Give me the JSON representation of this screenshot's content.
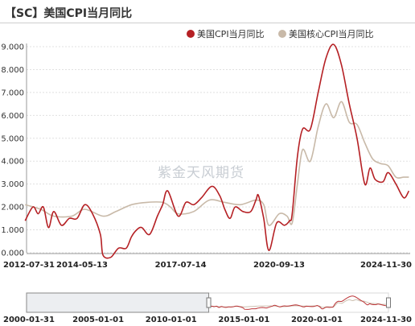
{
  "title": "【SC】美国CPI当月同比",
  "watermark": "紫金天风期货",
  "colors": {
    "cpi": "#b52024",
    "core": "#c8b9a8",
    "grid": "#e0e0e0",
    "axis": "#9a9a9a"
  },
  "legend": [
    {
      "name": "美国CPI当月同比",
      "color": "#b52024",
      "icon": "filled-circle-icon"
    },
    {
      "name": "美国核心CPI当月同比",
      "color": "#c8b9a8",
      "icon": "filled-circle-icon"
    }
  ],
  "chart_data": {
    "type": "line",
    "title": "【SC】美国CPI当月同比",
    "xlabel": "",
    "ylabel": "",
    "x_range": [
      "2012-07-31",
      "2024-11-30"
    ],
    "ylim": [
      0,
      9
    ],
    "y_ticks": [
      "0.000",
      "1.000",
      "2.000",
      "3.000",
      "4.000",
      "5.000",
      "6.000",
      "7.000",
      "8.000",
      "9.000"
    ],
    "x_ticks": [
      "2012-07-31",
      "2014-05-13",
      "2017-07-14",
      "2020-09-13",
      "2024-11-30"
    ],
    "grid": true,
    "legend_position": "top-right",
    "series": [
      {
        "name": "美国CPI当月同比",
        "color": "#b52024",
        "points": [
          [
            "2012-07",
            1.4
          ],
          [
            "2012-10",
            2.0
          ],
          [
            "2012-12",
            1.7
          ],
          [
            "2013-02",
            2.0
          ],
          [
            "2013-04",
            1.1
          ],
          [
            "2013-06",
            1.8
          ],
          [
            "2013-09",
            1.2
          ],
          [
            "2013-12",
            1.5
          ],
          [
            "2014-03",
            1.5
          ],
          [
            "2014-06",
            2.1
          ],
          [
            "2014-09",
            1.7
          ],
          [
            "2014-12",
            0.8
          ],
          [
            "2015-01",
            -0.1
          ],
          [
            "2015-04",
            -0.2
          ],
          [
            "2015-07",
            0.2
          ],
          [
            "2015-10",
            0.2
          ],
          [
            "2015-12",
            0.7
          ],
          [
            "2016-02",
            1.0
          ],
          [
            "2016-04",
            1.1
          ],
          [
            "2016-07",
            0.8
          ],
          [
            "2016-10",
            1.6
          ],
          [
            "2016-12",
            2.1
          ],
          [
            "2017-02",
            2.7
          ],
          [
            "2017-06",
            1.6
          ],
          [
            "2017-09",
            2.2
          ],
          [
            "2017-12",
            2.1
          ],
          [
            "2018-03",
            2.4
          ],
          [
            "2018-07",
            2.9
          ],
          [
            "2018-10",
            2.5
          ],
          [
            "2018-12",
            1.9
          ],
          [
            "2019-02",
            1.5
          ],
          [
            "2019-04",
            2.0
          ],
          [
            "2019-07",
            1.8
          ],
          [
            "2019-10",
            1.8
          ],
          [
            "2019-12",
            2.3
          ],
          [
            "2020-01",
            2.5
          ],
          [
            "2020-03",
            1.5
          ],
          [
            "2020-05",
            0.1
          ],
          [
            "2020-08",
            1.3
          ],
          [
            "2020-11",
            1.2
          ],
          [
            "2021-01",
            1.4
          ],
          [
            "2021-02",
            1.7
          ],
          [
            "2021-04",
            4.2
          ],
          [
            "2021-06",
            5.4
          ],
          [
            "2021-09",
            5.4
          ],
          [
            "2021-12",
            7.0
          ],
          [
            "2022-03",
            8.5
          ],
          [
            "2022-06",
            9.1
          ],
          [
            "2022-09",
            8.2
          ],
          [
            "2022-12",
            6.5
          ],
          [
            "2023-03",
            5.0
          ],
          [
            "2023-06",
            3.0
          ],
          [
            "2023-08",
            3.7
          ],
          [
            "2023-10",
            3.2
          ],
          [
            "2024-01",
            3.1
          ],
          [
            "2024-03",
            3.5
          ],
          [
            "2024-06",
            3.0
          ],
          [
            "2024-09",
            2.4
          ],
          [
            "2024-11",
            2.7
          ]
        ]
      },
      {
        "name": "美国核心CPI当月同比",
        "color": "#c8b9a8",
        "points": [
          [
            "2012-07",
            2.1
          ],
          [
            "2013-01",
            1.9
          ],
          [
            "2013-06",
            1.6
          ],
          [
            "2014-01",
            1.6
          ],
          [
            "2014-06",
            1.9
          ],
          [
            "2015-01",
            1.6
          ],
          [
            "2015-06",
            1.8
          ],
          [
            "2015-12",
            2.1
          ],
          [
            "2016-06",
            2.2
          ],
          [
            "2016-12",
            2.2
          ],
          [
            "2017-03",
            2.0
          ],
          [
            "2017-06",
            1.7
          ],
          [
            "2017-12",
            1.8
          ],
          [
            "2018-06",
            2.3
          ],
          [
            "2018-12",
            2.2
          ],
          [
            "2019-06",
            2.1
          ],
          [
            "2019-12",
            2.3
          ],
          [
            "2020-03",
            2.1
          ],
          [
            "2020-05",
            1.2
          ],
          [
            "2020-09",
            1.7
          ],
          [
            "2020-12",
            1.6
          ],
          [
            "2021-02",
            1.3
          ],
          [
            "2021-04",
            3.0
          ],
          [
            "2021-06",
            4.5
          ],
          [
            "2021-09",
            4.0
          ],
          [
            "2021-12",
            5.5
          ],
          [
            "2022-03",
            6.5
          ],
          [
            "2022-06",
            5.9
          ],
          [
            "2022-09",
            6.6
          ],
          [
            "2022-12",
            5.7
          ],
          [
            "2023-03",
            5.6
          ],
          [
            "2023-06",
            4.8
          ],
          [
            "2023-09",
            4.1
          ],
          [
            "2023-12",
            3.9
          ],
          [
            "2024-03",
            3.8
          ],
          [
            "2024-06",
            3.3
          ],
          [
            "2024-09",
            3.3
          ],
          [
            "2024-11",
            3.3
          ]
        ]
      }
    ]
  },
  "navigator": {
    "tick_labels": [
      "2000-01-31",
      "2005-01-01",
      "2010-01-01",
      "2015-01-01",
      "2020-01-01",
      "2024-11-30"
    ],
    "selected_range": [
      "2012-07-31",
      "2024-11-30"
    ]
  }
}
